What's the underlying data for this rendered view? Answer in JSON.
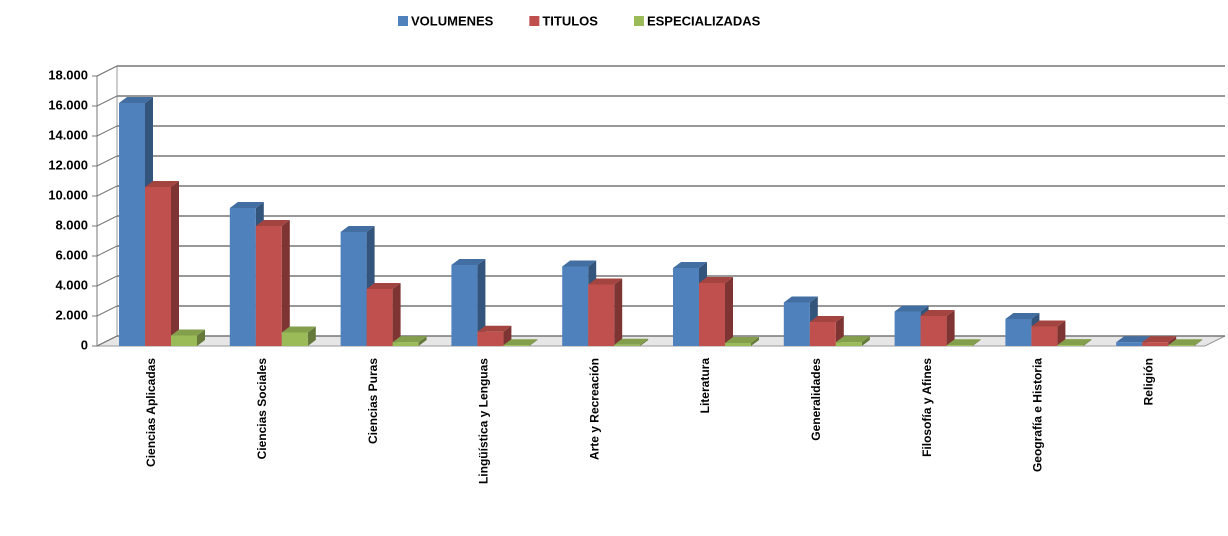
{
  "chart_data": {
    "type": "bar3d",
    "categories": [
      "Ciencias Aplicadas",
      "Ciencias Sociales",
      "Ciencias Puras",
      "Lingüística y Lenguas",
      "Arte y Recreación",
      "Literatura",
      "Generalidades",
      "Filosofía y Afines",
      "Geografía e Historia",
      "Religión"
    ],
    "series": [
      {
        "name": "VOLUMENES",
        "color": "#4f81bd",
        "values": [
          16200,
          9200,
          7600,
          5400,
          5300,
          5200,
          2900,
          2300,
          1800,
          250
        ]
      },
      {
        "name": "TITULOS",
        "color": "#c0504d",
        "values": [
          10600,
          8000,
          3800,
          950,
          4100,
          4200,
          1600,
          2000,
          1300,
          250
        ]
      },
      {
        "name": "ESPECIALIZADAS",
        "color": "#9bbb59",
        "values": [
          700,
          900,
          250,
          50,
          80,
          200,
          250,
          50,
          60,
          50
        ]
      }
    ],
    "ylim": [
      0,
      18000
    ],
    "yticks": [
      0,
      {
        "value": 2000,
        "label": "2.000"
      },
      {
        "value": 4000,
        "label": "4.000"
      },
      {
        "value": 6000,
        "label": "6.000"
      },
      {
        "value": 8000,
        "label": "8.000"
      },
      {
        "value": 10000,
        "label": "10.000"
      },
      {
        "value": 12000,
        "label": "12.000"
      },
      {
        "value": 14000,
        "label": "14.000"
      },
      {
        "value": 16000,
        "label": "16.000"
      },
      {
        "value": 18000,
        "label": "18.000"
      }
    ],
    "grid": true,
    "legend": "top"
  }
}
